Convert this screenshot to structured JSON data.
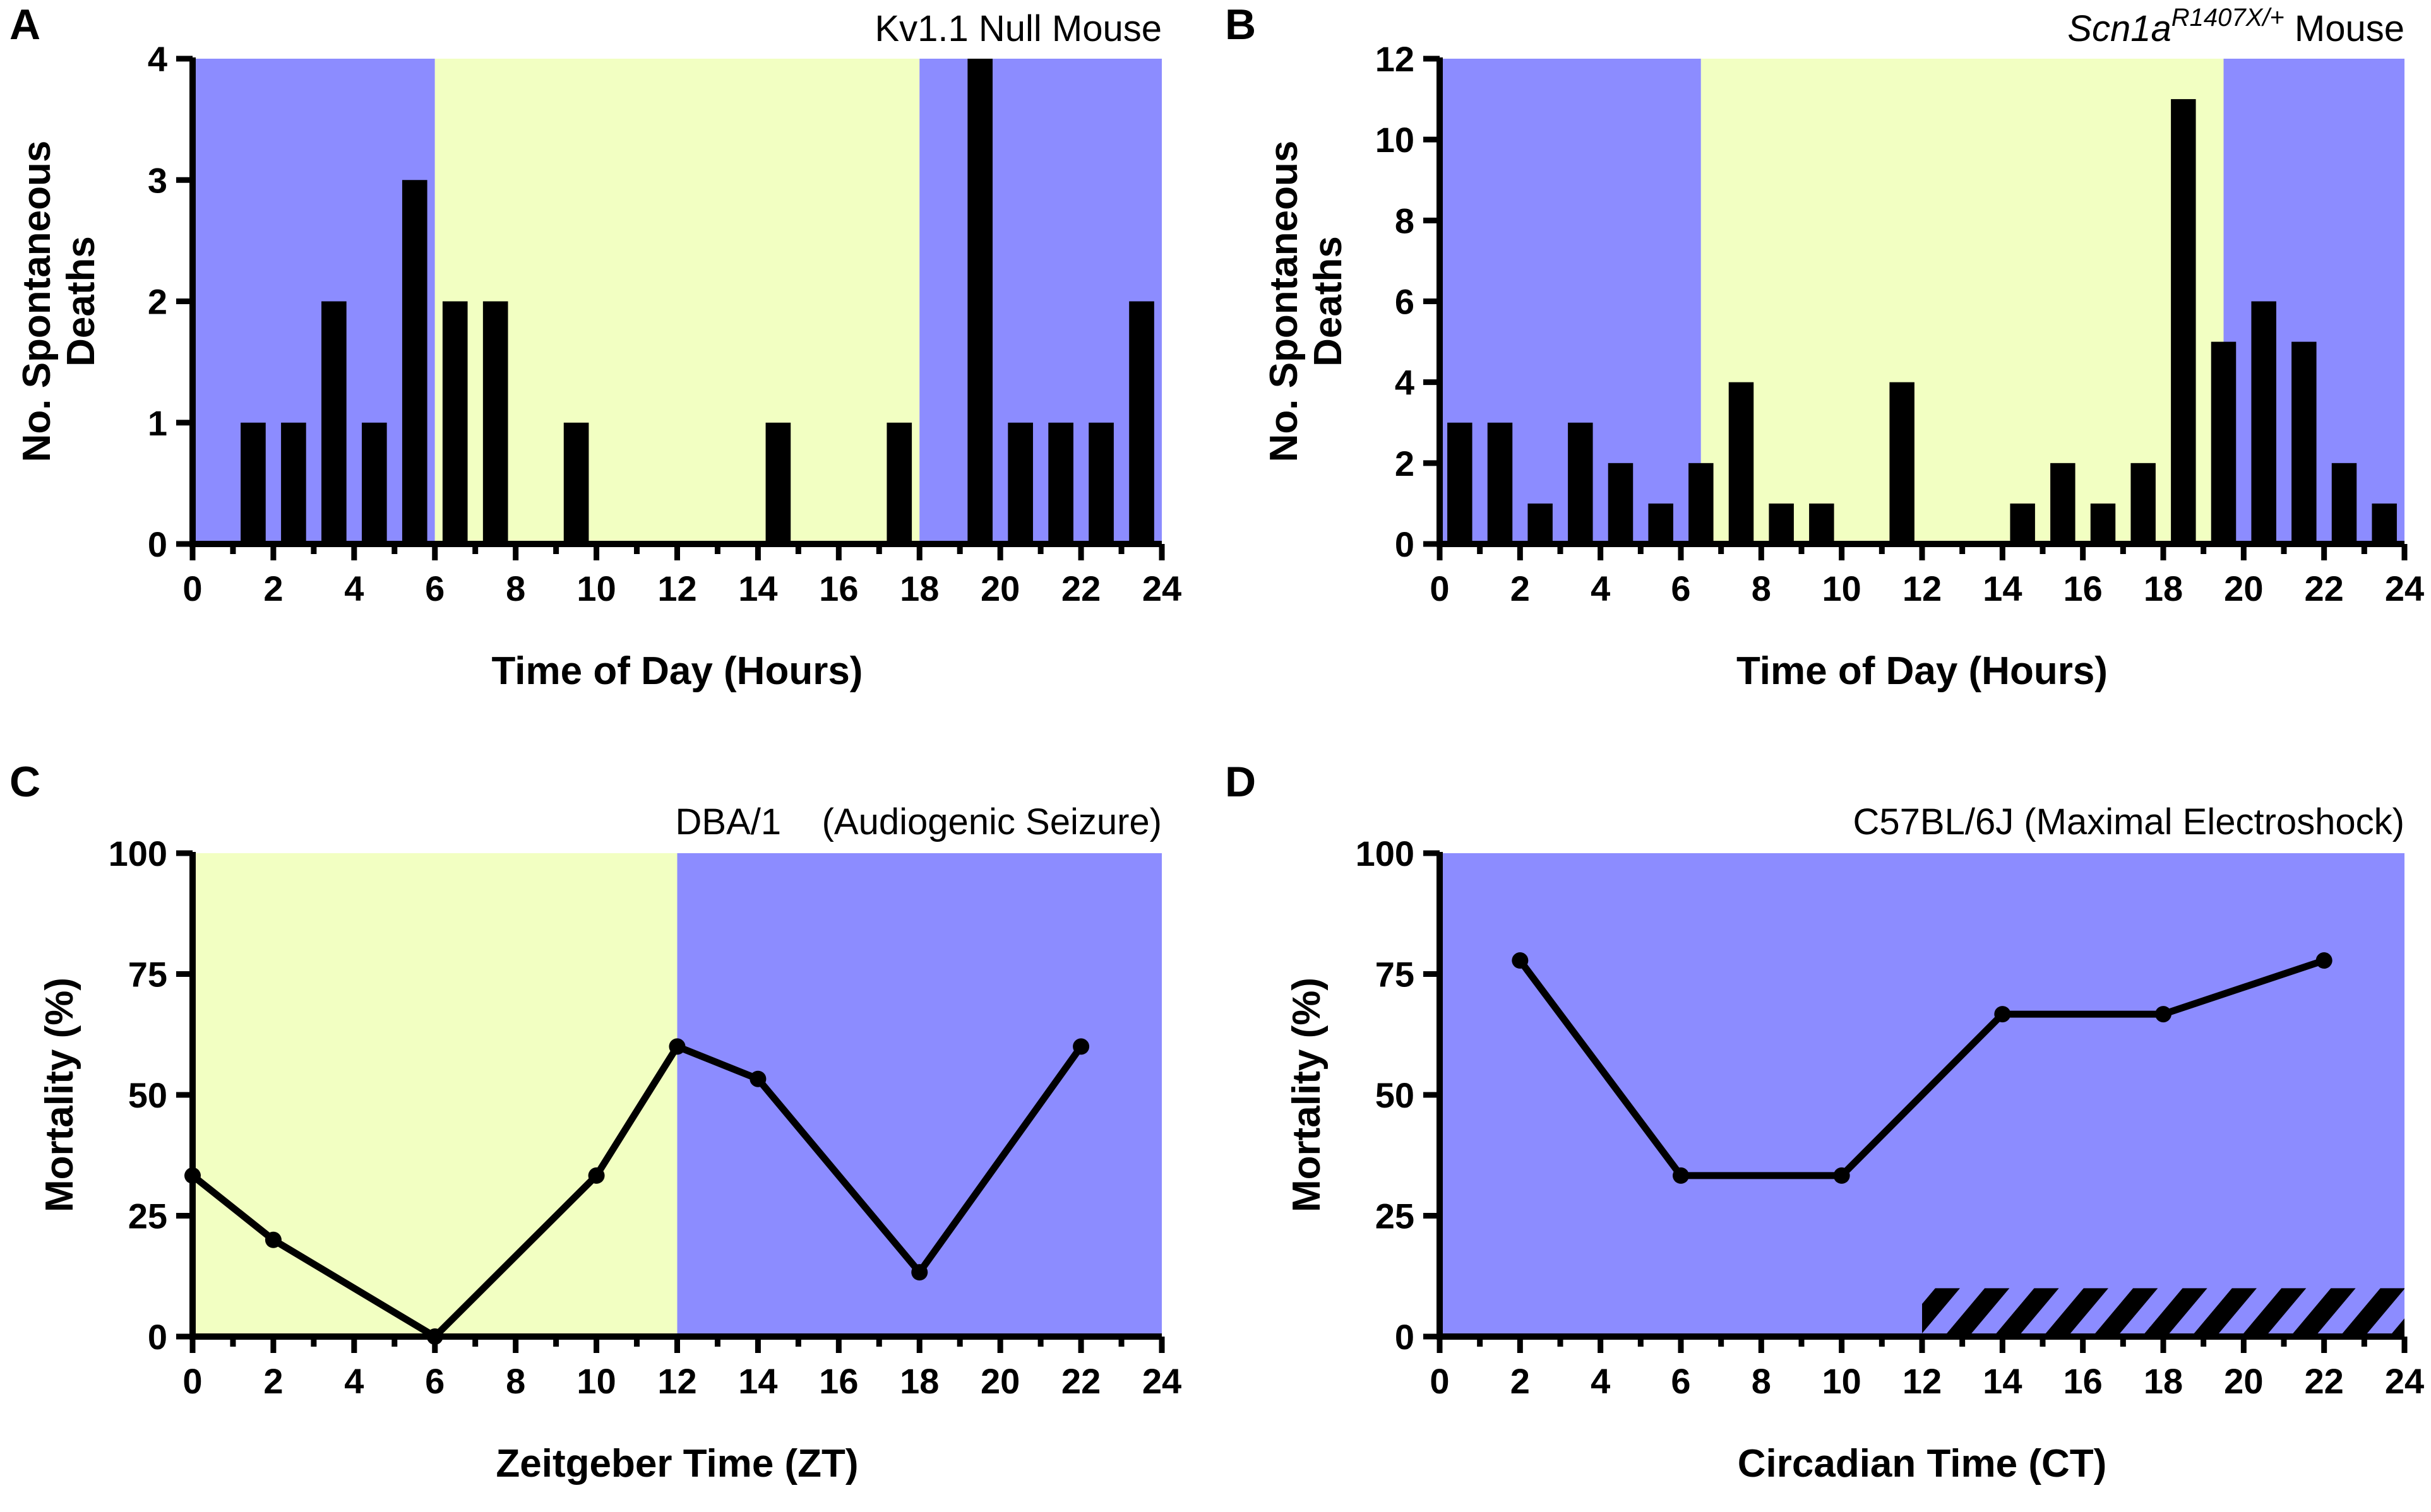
{
  "colors": {
    "dark": "#8c8cff",
    "light": "#f2ffc2",
    "ink": "#000000"
  },
  "chart_data": [
    {
      "id": "A",
      "type": "bar",
      "panel_letter": "A",
      "title": "Kv1.1 Null Mouse",
      "xlabel": "Time of Day (Hours)",
      "ylabel_lines": [
        "No. Spontaneous",
        "Deaths"
      ],
      "xlim": [
        0,
        24
      ],
      "ylim": [
        0,
        4
      ],
      "xticks": [
        "0",
        "2",
        "4",
        "6",
        "8",
        "10",
        "12",
        "14",
        "16",
        "18",
        "20",
        "22",
        "24"
      ],
      "yticks": [
        "0",
        "1",
        "2",
        "3",
        "4"
      ],
      "x": [
        0.5,
        1.5,
        2.5,
        3.5,
        4.5,
        5.5,
        6.5,
        7.5,
        8.5,
        9.5,
        10.5,
        11.5,
        12.5,
        13.5,
        14.5,
        15.5,
        16.5,
        17.5,
        18.5,
        19.5,
        20.5,
        21.5,
        22.5,
        23.5
      ],
      "values": [
        0,
        1,
        1,
        2,
        1,
        3,
        2,
        2,
        0,
        1,
        0,
        0,
        0,
        0,
        1,
        0,
        0,
        1,
        0,
        4,
        1,
        1,
        1,
        2
      ],
      "shading": [
        {
          "from": 0,
          "to": 6,
          "phase": "dark"
        },
        {
          "from": 6,
          "to": 18,
          "phase": "light"
        },
        {
          "from": 18,
          "to": 24,
          "phase": "dark"
        }
      ]
    },
    {
      "id": "B",
      "type": "bar",
      "panel_letter": "B",
      "title_italic": "Scn1a",
      "title_sup": "R1407X/+",
      "title_rest": " Mouse",
      "xlabel": "Time of Day (Hours)",
      "ylabel_lines": [
        "No. Spontaneous",
        "Deaths"
      ],
      "xlim": [
        0,
        24
      ],
      "ylim": [
        0,
        12
      ],
      "xticks": [
        "0",
        "2",
        "4",
        "6",
        "8",
        "10",
        "12",
        "14",
        "16",
        "18",
        "20",
        "22",
        "24"
      ],
      "yticks": [
        "0",
        "2",
        "4",
        "6",
        "8",
        "10",
        "12"
      ],
      "x": [
        0.5,
        1.5,
        2.5,
        3.5,
        4.5,
        5.5,
        6.5,
        7.5,
        8.5,
        9.5,
        10.5,
        11.5,
        12.5,
        13.5,
        14.5,
        15.5,
        16.5,
        17.5,
        18.5,
        19.5,
        20.5,
        21.5,
        22.5,
        23.5
      ],
      "values": [
        3,
        3,
        1,
        3,
        2,
        1,
        2,
        4,
        1,
        1,
        0,
        4,
        0,
        0,
        1,
        2,
        1,
        2,
        11,
        5,
        6,
        5,
        2,
        1
      ],
      "shading": [
        {
          "from": 0,
          "to": 6.5,
          "phase": "dark"
        },
        {
          "from": 6.5,
          "to": 19.5,
          "phase": "light"
        },
        {
          "from": 19.5,
          "to": 24,
          "phase": "dark"
        }
      ]
    },
    {
      "id": "C",
      "type": "line",
      "panel_letter": "C",
      "title": "DBA/1    (Audiogenic Seizure)",
      "xlabel": "Zeitgeber Time (ZT)",
      "ylabel": "Mortality (%)",
      "xlim": [
        0,
        24
      ],
      "ylim": [
        0,
        100
      ],
      "xticks": [
        "0",
        "2",
        "4",
        "6",
        "8",
        "10",
        "12",
        "14",
        "16",
        "18",
        "20",
        "22",
        "24"
      ],
      "yticks": [
        "0",
        "25",
        "50",
        "75",
        "100"
      ],
      "x": [
        0,
        2,
        6,
        10,
        12,
        14,
        18,
        22
      ],
      "y": [
        33.3,
        20,
        0,
        33.3,
        60,
        53.3,
        13.3,
        60
      ],
      "shading": [
        {
          "from": 0,
          "to": 12,
          "phase": "light"
        },
        {
          "from": 12,
          "to": 24,
          "phase": "dark"
        }
      ]
    },
    {
      "id": "D",
      "type": "line",
      "panel_letter": "D",
      "title": "C57BL/6J (Maximal Electroshock)",
      "xlabel": "Circadian Time (CT)",
      "ylabel": "Mortality (%)",
      "xlim": [
        0,
        24
      ],
      "ylim": [
        0,
        100
      ],
      "xticks": [
        "0",
        "2",
        "4",
        "6",
        "8",
        "10",
        "12",
        "14",
        "16",
        "18",
        "20",
        "22",
        "24"
      ],
      "yticks": [
        "0",
        "25",
        "50",
        "75",
        "100"
      ],
      "x": [
        2,
        6,
        10,
        14,
        18,
        22
      ],
      "y": [
        77.8,
        33.3,
        33.3,
        66.7,
        66.7,
        77.8
      ],
      "shading": [
        {
          "from": 0,
          "to": 24,
          "phase": "dark"
        }
      ],
      "hatch_bar": {
        "from": 12,
        "to": 24
      }
    }
  ]
}
